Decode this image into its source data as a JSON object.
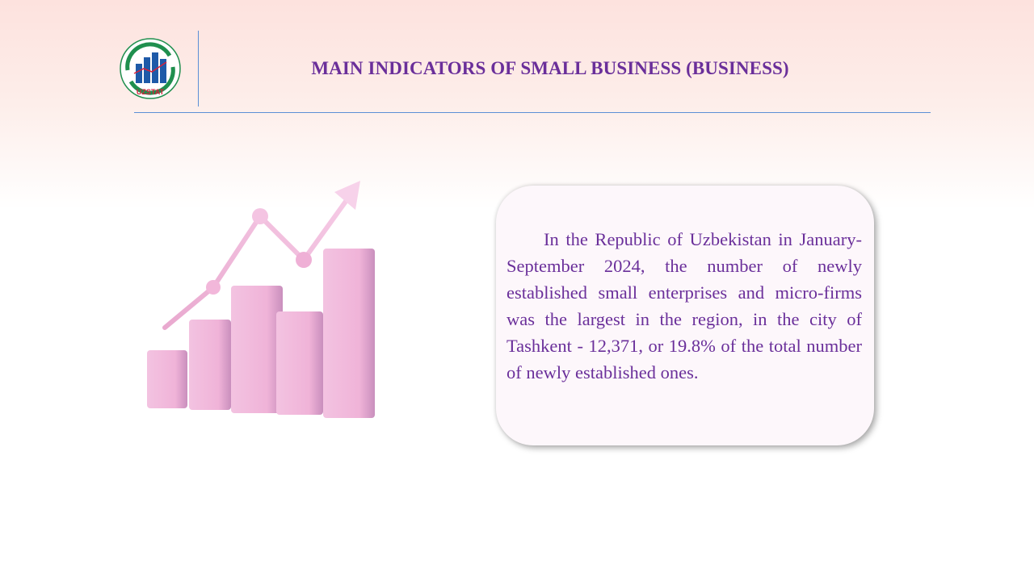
{
  "header": {
    "logo_text": "UZSTAT",
    "title": "MAIN INDICATORS OF SMALL BUSINESS (BUSINESS)"
  },
  "card": {
    "text": "In the Republic of Uzbekistan in January-September 2024, the number of newly established small enterprises and micro-firms was the largest in the region, in the city of Tashkent - 12,371, or 19.8% of the total number of newly established ones."
  },
  "colors": {
    "title": "#6a2f9a",
    "divider": "#5b8fd6",
    "bar_pink": "#f2b8dc",
    "logo_green": "#1f8f4e",
    "logo_blue": "#1e5aa8"
  },
  "icons": [
    "uzstat-logo-icon",
    "growth-chart-illustration-icon"
  ]
}
